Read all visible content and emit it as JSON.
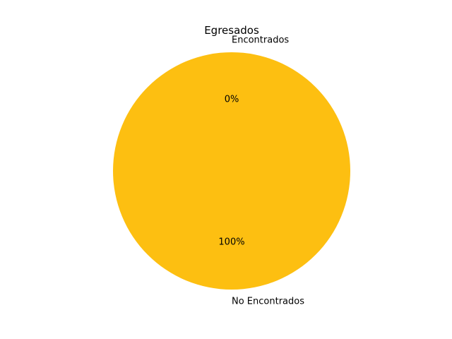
{
  "chart_data": {
    "type": "pie",
    "title": "Egresados",
    "slices": [
      {
        "label": "Encontrados",
        "value": 0,
        "pct_label": "0%",
        "color": "#ffbf00"
      },
      {
        "label": "No Encontrados",
        "value": 100,
        "pct_label": "100%",
        "color": "#fdbf11"
      }
    ]
  }
}
